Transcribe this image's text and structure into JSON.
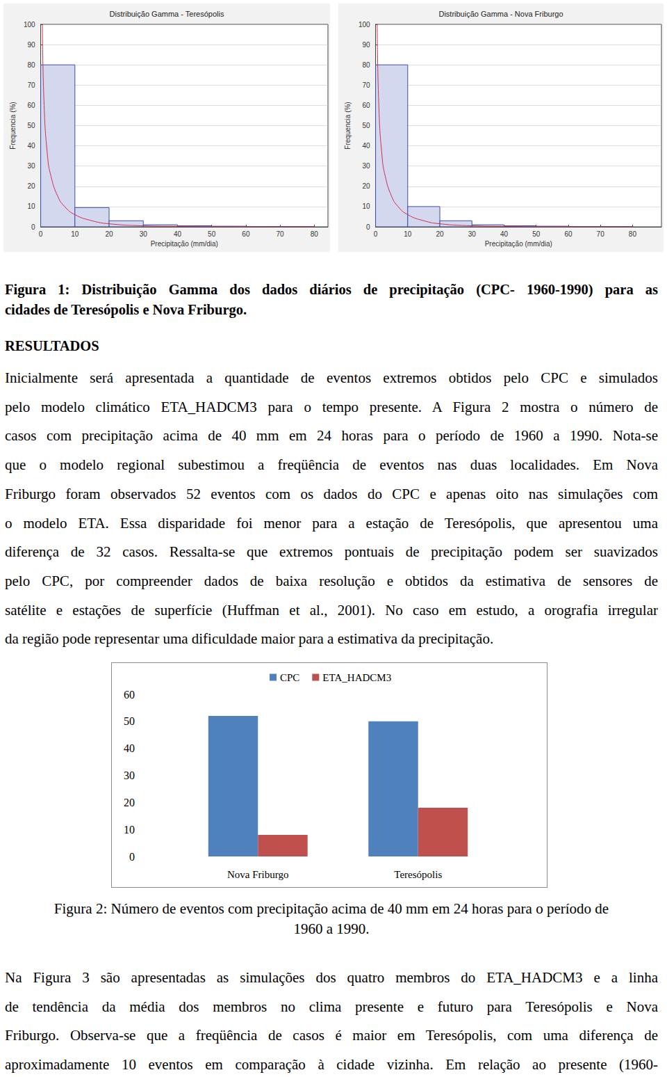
{
  "chart_data": [
    {
      "type": "histogram",
      "title": "Distribuição Gamma - Teresópolis",
      "xlabel": "Precipitação (mm/dia)",
      "ylabel": "Frequencia (%)",
      "bins": [
        0,
        10,
        20,
        30,
        40,
        50,
        60,
        70,
        80
      ],
      "counts": [
        80,
        9.5,
        3,
        1,
        0.5,
        0.3,
        0.1,
        0.1
      ],
      "color": "#3a4fa0",
      "curve": {
        "x": [
          0.5,
          1,
          2,
          3,
          5,
          7,
          10,
          15,
          20,
          30,
          40,
          60,
          80
        ],
        "values": [
          100,
          60,
          35,
          25,
          15,
          10,
          6,
          3,
          1.5,
          0.5,
          0.2,
          0,
          0
        ],
        "color": "#d0304a"
      },
      "xlim": [
        0,
        84
      ],
      "xticks": [
        0,
        10,
        20,
        30,
        40,
        50,
        60,
        70,
        80
      ],
      "ylim": [
        0,
        100
      ],
      "yticks": [
        0,
        10,
        20,
        30,
        40,
        50,
        60,
        70,
        80,
        90,
        100
      ],
      "grid": true
    },
    {
      "type": "histogram",
      "title": "Distribuição Gamma - Nova Friburgo",
      "xlabel": "Precipitação (mm/dia)",
      "ylabel": "Frequencia (%)",
      "bins": [
        0,
        10,
        20,
        30,
        40,
        50,
        60,
        70,
        80
      ],
      "counts": [
        80,
        10,
        3,
        1,
        0.5,
        0.3,
        0.1,
        0.1
      ],
      "color": "#3a4fa0",
      "curve": {
        "x": [
          0.5,
          1,
          2,
          3,
          5,
          7,
          10,
          15,
          20,
          30,
          40,
          60,
          80
        ],
        "values": [
          100,
          60,
          35,
          25,
          15,
          10,
          6,
          3,
          1.5,
          0.5,
          0.2,
          0,
          0
        ],
        "color": "#d0304a"
      },
      "xlim": [
        0,
        89
      ],
      "xticks": [
        0,
        10,
        20,
        30,
        40,
        50,
        60,
        70,
        80
      ],
      "ylim": [
        0,
        100
      ],
      "yticks": [
        0,
        10,
        20,
        30,
        40,
        50,
        60,
        70,
        80,
        90,
        100
      ],
      "grid": true
    },
    {
      "type": "bar",
      "categories": [
        "Nova Friburgo",
        "Teresópolis"
      ],
      "series": [
        {
          "name": "CPC",
          "color": "#4f81bd",
          "values": [
            52,
            50
          ]
        },
        {
          "name": "ETA_HADCM3",
          "color": "#c0504d",
          "values": [
            8,
            18
          ]
        }
      ],
      "ylim": [
        0,
        60
      ],
      "yticks": [
        0,
        10,
        20,
        30,
        40,
        50,
        60
      ],
      "grid": false,
      "legend": "top"
    }
  ],
  "document": {
    "figure1_caption": [
      "Figura 1: Distribuição Gamma dos dados diários de precipitação (CPC- 1960-1990) para as",
      "cidades de Teresópolis e Nova Friburgo."
    ],
    "heading": "RESULTADOS",
    "paragraph1": [
      "Inicialmente será apresentada a quantidade de eventos extremos obtidos pelo CPC e simulados",
      "pelo modelo climático ETA_HADCM3 para o tempo presente. A Figura 2 mostra o número de",
      "casos com precipitação acima de 40 mm em 24 horas para o período de 1960 a 1990. Nota-se",
      "que o modelo regional subestimou a freqüência de eventos nas duas localidades. Em Nova",
      "Friburgo foram observados 52 eventos com os dados do CPC e apenas oito nas simulações com",
      "o modelo ETA. Essa disparidade foi menor para a estação de Teresópolis, que apresentou uma",
      "diferença de 32 casos. Ressalta-se que extremos pontuais de precipitação podem ser suavizados",
      "pelo CPC, por compreender dados de baixa resolução e obtidos da estimativa de sensores de",
      "satélite e estações de superfície (Huffman et al., 2001). No caso em estudo, a orografia irregular",
      "da região pode representar uma dificuldade maior para a estimativa da precipitação."
    ],
    "figure2_caption": [
      "Figura 2: Número de eventos com precipitação acima de 40 mm em 24 horas para o período de",
      "1960 a 1990."
    ],
    "paragraph2": [
      "Na Figura 3 são apresentadas as simulações dos quatro membros do ETA_HADCM3 e a linha",
      "de tendência da média dos membros no clima presente e futuro para Teresópolis e Nova",
      "Friburgo. Observa-se que a freqüência de casos é maior em Teresópolis, com uma diferença de",
      "aproximadamente 10 eventos em comparação à cidade vizinha. Em relação ao presente (1960-"
    ]
  }
}
